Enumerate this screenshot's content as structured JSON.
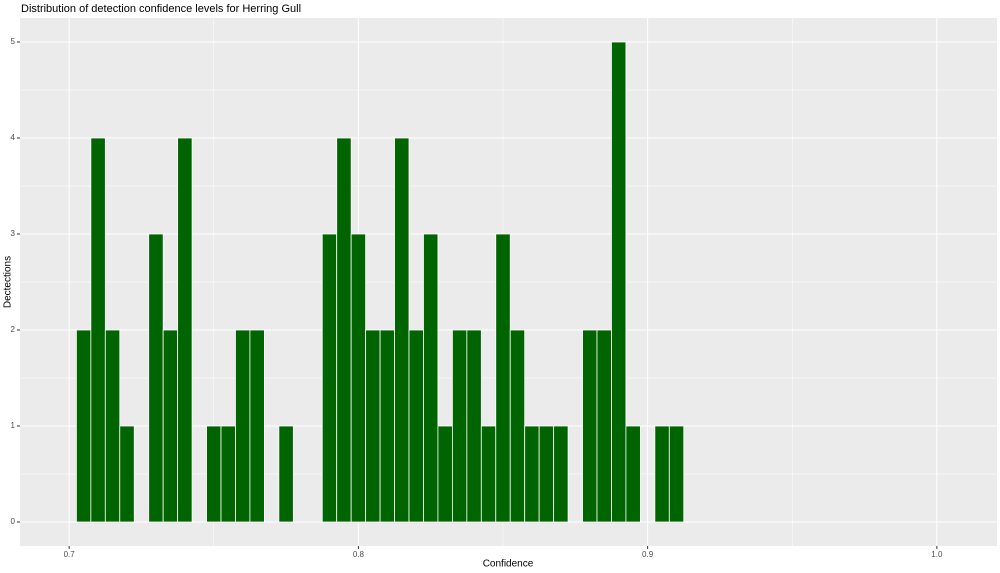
{
  "chart_data": {
    "type": "histogram",
    "title": "Distribution of detection confidence levels for Herring Gull",
    "x_label": "Confidence",
    "y_label": "Dectections",
    "bins": [
      0.7025,
      0.7075,
      0.7125,
      0.7175,
      0.7225,
      0.7275,
      0.7325,
      0.7375,
      0.7425,
      0.7475,
      0.7525,
      0.7575,
      0.7625,
      0.7675,
      0.7725,
      0.7775,
      0.7825,
      0.7875,
      0.7925,
      0.7975,
      0.8025,
      0.8075,
      0.8125,
      0.8175,
      0.8225,
      0.8275,
      0.8325,
      0.8375,
      0.8425,
      0.8475,
      0.8525,
      0.8575,
      0.8625,
      0.8675,
      0.8725,
      0.8775,
      0.8825,
      0.8875,
      0.8925,
      0.8975,
      0.9025,
      0.9075,
      0.9125
    ],
    "values": [
      2,
      4,
      2,
      1,
      0,
      3,
      2,
      4,
      0,
      1,
      1,
      2,
      2,
      0,
      1,
      0,
      0,
      3,
      4,
      3,
      2,
      2,
      4,
      2,
      3,
      1,
      2,
      2,
      1,
      3,
      2,
      1,
      1,
      1,
      0,
      2,
      2,
      5,
      1,
      0,
      1,
      1
    ],
    "color": "#006400",
    "xlim": [
      0.683,
      1.0208
    ],
    "ylim": [
      -0.25,
      5.25
    ],
    "xticks": [
      0.7,
      0.8,
      0.9,
      {
        "value": 1,
        "label": "1.0"
      }
    ],
    "yticks": [
      0,
      1,
      2,
      3,
      4,
      5
    ],
    "x_minor_grid": [
      0.75,
      0.85,
      0.95
    ],
    "y_minor_grid": [
      0.5,
      1.5,
      2.5,
      3.5,
      4.5
    ],
    "grid": true
  }
}
